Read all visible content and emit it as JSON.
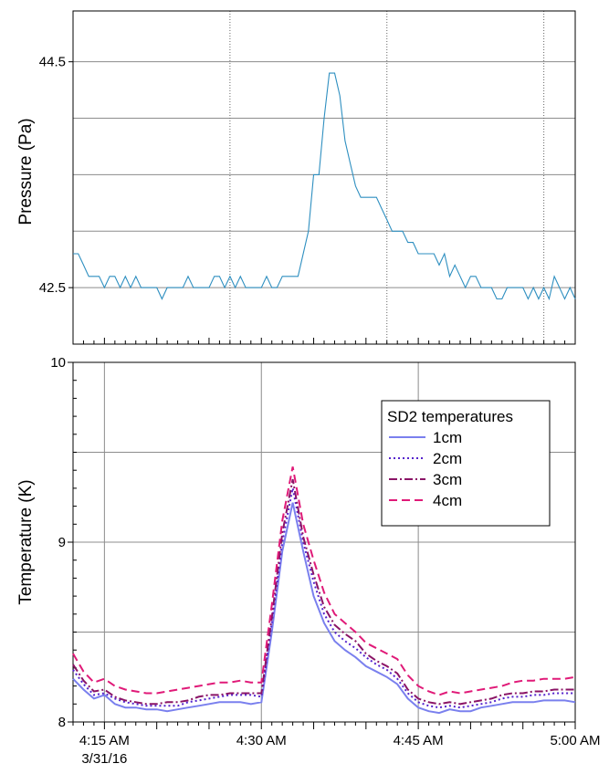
{
  "chart_data": [
    {
      "type": "line",
      "ylabel": "Pressure (Pa)",
      "xlim_min": [
        0,
        48
      ],
      "ylim": [
        42.0,
        44.95
      ],
      "y_ticks": [
        {
          "value": 42.5,
          "label": "42.5"
        },
        {
          "value": 44.5,
          "label": "44.5"
        }
      ],
      "y_gridlines": [
        42.5,
        43.0,
        43.5,
        44.0,
        44.5
      ],
      "x_gridlines_min": [
        15,
        30,
        45
      ],
      "grid": true,
      "color": "#2e8fc0",
      "series": [
        {
          "x_min": [
            0,
            0.5,
            1,
            1.5,
            2,
            2.5,
            3,
            3.5,
            4,
            4.5,
            5,
            5.5,
            6,
            6.5,
            7,
            7.5,
            8,
            8.5,
            9,
            9.5,
            10,
            10.5,
            11,
            11.5,
            12,
            12.5,
            13,
            13.5,
            14,
            14.5,
            15,
            15.5,
            16,
            16.5,
            17,
            17.5,
            18,
            18.5,
            19,
            19.5,
            20,
            20.5,
            21,
            21.5,
            22,
            22.5,
            23,
            23.5,
            24,
            24.5,
            25,
            25.5,
            26,
            26.5,
            27,
            27.5,
            28,
            28.5,
            29,
            29.5,
            30,
            30.5,
            31,
            31.5,
            32,
            32.5,
            33,
            33.5,
            34,
            34.5,
            35,
            35.5,
            36,
            36.5,
            37,
            37.5,
            38,
            38.5,
            39,
            39.5,
            40,
            40.5,
            41,
            41.5,
            42,
            42.5,
            43,
            43.5,
            44,
            44.5,
            45,
            45.5,
            46,
            46.5,
            47,
            47.5,
            48
          ],
          "values": [
            42.8,
            42.8,
            42.7,
            42.6,
            42.6,
            42.6,
            42.5,
            42.6,
            42.6,
            42.5,
            42.6,
            42.5,
            42.6,
            42.5,
            42.5,
            42.5,
            42.5,
            42.4,
            42.5,
            42.5,
            42.5,
            42.5,
            42.6,
            42.5,
            42.5,
            42.5,
            42.5,
            42.6,
            42.6,
            42.5,
            42.6,
            42.5,
            42.6,
            42.5,
            42.5,
            42.5,
            42.5,
            42.6,
            42.5,
            42.5,
            42.6,
            42.6,
            42.6,
            42.6,
            42.8,
            43.0,
            43.5,
            43.5,
            44.0,
            44.4,
            44.4,
            44.2,
            43.8,
            43.6,
            43.4,
            43.3,
            43.3,
            43.3,
            43.3,
            43.2,
            43.1,
            43.0,
            43.0,
            43.0,
            42.9,
            42.9,
            42.8,
            42.8,
            42.8,
            42.8,
            42.7,
            42.8,
            42.6,
            42.7,
            42.6,
            42.5,
            42.6,
            42.6,
            42.5,
            42.5,
            42.5,
            42.4,
            42.4,
            42.5,
            42.5,
            42.5,
            42.5,
            42.4,
            42.5,
            42.4,
            42.5,
            42.4,
            42.6,
            42.5,
            42.4,
            42.5,
            42.4
          ]
        }
      ]
    },
    {
      "type": "line",
      "ylabel": "Temperature (K)",
      "xlim_min": [
        0,
        48
      ],
      "ylim": [
        8.0,
        10.0
      ],
      "y_ticks": [
        {
          "value": 8,
          "label": "8"
        },
        {
          "value": 9,
          "label": "9"
        },
        {
          "value": 10,
          "label": "10"
        }
      ],
      "x_ticks": [
        {
          "value": 3,
          "label": "4:15 AM",
          "sublabel": "3/31/16"
        },
        {
          "value": 18,
          "label": "4:30 AM"
        },
        {
          "value": 33,
          "label": "4:45 AM"
        },
        {
          "value": 48,
          "label": "5:00 AM"
        }
      ],
      "grid": true,
      "legend": {
        "title": "SD2 temperatures",
        "placement": "right"
      },
      "x_min": [
        0,
        1,
        2,
        3,
        4,
        5,
        6,
        7,
        8,
        9,
        10,
        11,
        12,
        13,
        14,
        15,
        16,
        17,
        18,
        19,
        20,
        21,
        22,
        23,
        24,
        25,
        26,
        27,
        28,
        29,
        30,
        31,
        32,
        33,
        34,
        35,
        36,
        37,
        38,
        39,
        40,
        41,
        42,
        43,
        44,
        45,
        46,
        47,
        48
      ],
      "series": [
        {
          "name": "1cm",
          "color": "#7a80ee",
          "dash": "solid",
          "values": [
            8.24,
            8.18,
            8.13,
            8.15,
            8.1,
            8.08,
            8.08,
            8.07,
            8.07,
            8.06,
            8.07,
            8.08,
            8.09,
            8.1,
            8.11,
            8.11,
            8.11,
            8.1,
            8.11,
            8.5,
            8.95,
            9.22,
            8.95,
            8.7,
            8.55,
            8.45,
            8.4,
            8.36,
            8.31,
            8.28,
            8.25,
            8.21,
            8.13,
            8.08,
            8.06,
            8.05,
            8.07,
            8.06,
            8.06,
            8.08,
            8.09,
            8.1,
            8.11,
            8.11,
            8.11,
            8.12,
            8.12,
            8.12,
            8.11
          ]
        },
        {
          "name": "2cm",
          "color": "#5522cc",
          "dash": "dot",
          "values": [
            8.29,
            8.21,
            8.15,
            8.16,
            8.13,
            8.11,
            8.1,
            8.09,
            8.09,
            8.09,
            8.09,
            8.11,
            8.12,
            8.13,
            8.14,
            8.15,
            8.15,
            8.15,
            8.14,
            8.55,
            9.0,
            9.3,
            9.0,
            8.78,
            8.6,
            8.5,
            8.45,
            8.41,
            8.36,
            8.32,
            8.29,
            8.24,
            8.16,
            8.11,
            8.09,
            8.08,
            8.09,
            8.08,
            8.09,
            8.1,
            8.11,
            8.13,
            8.14,
            8.14,
            8.15,
            8.15,
            8.16,
            8.16,
            8.16
          ]
        },
        {
          "name": "3cm",
          "color": "#8a1466",
          "dash": "dashdot",
          "values": [
            8.32,
            8.23,
            8.17,
            8.18,
            8.14,
            8.12,
            8.11,
            8.1,
            8.1,
            8.11,
            8.11,
            8.12,
            8.14,
            8.15,
            8.15,
            8.16,
            8.16,
            8.16,
            8.16,
            8.58,
            9.05,
            9.35,
            9.03,
            8.82,
            8.64,
            8.54,
            8.49,
            8.45,
            8.38,
            8.34,
            8.31,
            8.27,
            8.18,
            8.13,
            8.11,
            8.1,
            8.11,
            8.1,
            8.11,
            8.12,
            8.13,
            8.15,
            8.16,
            8.16,
            8.17,
            8.17,
            8.18,
            8.18,
            8.18
          ]
        },
        {
          "name": "4cm",
          "color": "#e01a78",
          "dash": "dash",
          "values": [
            8.38,
            8.28,
            8.22,
            8.24,
            8.2,
            8.18,
            8.17,
            8.16,
            8.16,
            8.17,
            8.18,
            8.19,
            8.2,
            8.21,
            8.22,
            8.22,
            8.23,
            8.22,
            8.22,
            8.65,
            9.12,
            9.42,
            9.1,
            8.9,
            8.72,
            8.6,
            8.55,
            8.5,
            8.44,
            8.41,
            8.38,
            8.35,
            8.26,
            8.2,
            8.17,
            8.15,
            8.17,
            8.16,
            8.17,
            8.18,
            8.19,
            8.2,
            8.22,
            8.23,
            8.23,
            8.24,
            8.24,
            8.24,
            8.25
          ]
        }
      ]
    }
  ]
}
